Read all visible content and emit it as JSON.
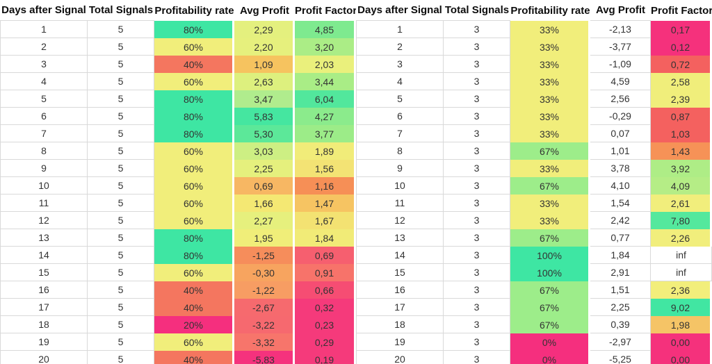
{
  "colors": {
    "border": "#d9d9d9",
    "cell_text": "#333333",
    "header_text": "#0d0d0d",
    "background": "#ffffff"
  },
  "chart_data": [
    {
      "type": "table",
      "columns": [
        "Days after Signal",
        "Total Signals",
        "Profitability rate",
        "Avg Profit",
        "Profit Factor"
      ],
      "rows": [
        [
          {
            "v": "1"
          },
          {
            "v": "5"
          },
          {
            "v": "80%",
            "bg": "#3ee6a3"
          },
          {
            "v": "2,29",
            "bg": "#e4f07e"
          },
          {
            "v": "4,85",
            "bg": "#7eea8f"
          }
        ],
        [
          {
            "v": "2"
          },
          {
            "v": "5"
          },
          {
            "v": "60%",
            "bg": "#f1ee7b"
          },
          {
            "v": "2,20",
            "bg": "#e6f07d"
          },
          {
            "v": "3,20",
            "bg": "#abed86"
          }
        ],
        [
          {
            "v": "3"
          },
          {
            "v": "5"
          },
          {
            "v": "40%",
            "bg": "#f4765f"
          },
          {
            "v": "1,09",
            "bg": "#f6c35f"
          },
          {
            "v": "2,03",
            "bg": "#eaf07c"
          }
        ],
        [
          {
            "v": "4"
          },
          {
            "v": "5"
          },
          {
            "v": "60%",
            "bg": "#f1ee7b"
          },
          {
            "v": "2,63",
            "bg": "#ddf07e"
          },
          {
            "v": "3,44",
            "bg": "#a9ed86"
          }
        ],
        [
          {
            "v": "5"
          },
          {
            "v": "5"
          },
          {
            "v": "80%",
            "bg": "#3ee6a3"
          },
          {
            "v": "3,47",
            "bg": "#b0ec8d"
          },
          {
            "v": "6,04",
            "bg": "#52e79c"
          }
        ],
        [
          {
            "v": "6"
          },
          {
            "v": "5"
          },
          {
            "v": "80%",
            "bg": "#3ee6a3"
          },
          {
            "v": "5,83",
            "bg": "#45e6a0"
          },
          {
            "v": "4,27",
            "bg": "#8beb8c"
          }
        ],
        [
          {
            "v": "7"
          },
          {
            "v": "5"
          },
          {
            "v": "80%",
            "bg": "#3ee6a3"
          },
          {
            "v": "5,30",
            "bg": "#5ce899"
          },
          {
            "v": "3,77",
            "bg": "#9cec88"
          }
        ],
        [
          {
            "v": "8"
          },
          {
            "v": "5"
          },
          {
            "v": "60%",
            "bg": "#f1ee7b"
          },
          {
            "v": "3,03",
            "bg": "#cdef83"
          },
          {
            "v": "1,89",
            "bg": "#f1ec79"
          }
        ],
        [
          {
            "v": "9"
          },
          {
            "v": "5"
          },
          {
            "v": "60%",
            "bg": "#f1ee7b"
          },
          {
            "v": "2,25",
            "bg": "#e5f07d"
          },
          {
            "v": "1,56",
            "bg": "#f3e374"
          }
        ],
        [
          {
            "v": "10"
          },
          {
            "v": "5"
          },
          {
            "v": "60%",
            "bg": "#f1ee7b"
          },
          {
            "v": "0,69",
            "bg": "#f7b763"
          },
          {
            "v": "1,16",
            "bg": "#f68f56"
          }
        ],
        [
          {
            "v": "11"
          },
          {
            "v": "5"
          },
          {
            "v": "60%",
            "bg": "#f1ee7b"
          },
          {
            "v": "1,66",
            "bg": "#f4e873"
          },
          {
            "v": "1,47",
            "bg": "#f6c462"
          }
        ],
        [
          {
            "v": "12"
          },
          {
            "v": "5"
          },
          {
            "v": "60%",
            "bg": "#f1ee7b"
          },
          {
            "v": "2,27",
            "bg": "#e6f07d"
          },
          {
            "v": "1,67",
            "bg": "#f3e272"
          }
        ],
        [
          {
            "v": "13"
          },
          {
            "v": "5"
          },
          {
            "v": "80%",
            "bg": "#3ee6a3"
          },
          {
            "v": "1,95",
            "bg": "#f0ee79"
          },
          {
            "v": "1,84",
            "bg": "#f1eb77"
          }
        ],
        [
          {
            "v": "14"
          },
          {
            "v": "5"
          },
          {
            "v": "80%",
            "bg": "#3ee6a3"
          },
          {
            "v": "-1,25",
            "bg": "#f68d5b"
          },
          {
            "v": "0,69",
            "bg": "#f65f6f"
          }
        ],
        [
          {
            "v": "15"
          },
          {
            "v": "5"
          },
          {
            "v": "60%",
            "bg": "#f1ee7b"
          },
          {
            "v": "-0,30",
            "bg": "#f7a45f"
          },
          {
            "v": "0,91",
            "bg": "#f7736a"
          }
        ],
        [
          {
            "v": "16"
          },
          {
            "v": "5"
          },
          {
            "v": "40%",
            "bg": "#f4765f"
          },
          {
            "v": "-1,22",
            "bg": "#f79d63"
          },
          {
            "v": "0,66",
            "bg": "#f64d73"
          }
        ],
        [
          {
            "v": "17"
          },
          {
            "v": "5"
          },
          {
            "v": "40%",
            "bg": "#f4765f"
          },
          {
            "v": "-2,67",
            "bg": "#f66a6e"
          },
          {
            "v": "0,32",
            "bg": "#f53a7b"
          }
        ],
        [
          {
            "v": "18"
          },
          {
            "v": "5"
          },
          {
            "v": "20%",
            "bg": "#f52f7e"
          },
          {
            "v": "-3,22",
            "bg": "#f6696f"
          },
          {
            "v": "0,23",
            "bg": "#f53a7b"
          }
        ],
        [
          {
            "v": "19"
          },
          {
            "v": "5"
          },
          {
            "v": "60%",
            "bg": "#f1ee7b"
          },
          {
            "v": "-3,32",
            "bg": "#f7756b"
          },
          {
            "v": "0,29",
            "bg": "#f53a7b"
          }
        ],
        [
          {
            "v": "20"
          },
          {
            "v": "5"
          },
          {
            "v": "40%",
            "bg": "#f4765f"
          },
          {
            "v": "-5,83",
            "bg": "#f5327d"
          },
          {
            "v": "0,19",
            "bg": "#f53a7b"
          }
        ]
      ]
    },
    {
      "type": "table",
      "columns": [
        "Days after Signal",
        "Total Signals",
        "Profitability rate",
        "Avg Profit",
        "Profit Factor"
      ],
      "rows": [
        [
          {
            "v": "1"
          },
          {
            "v": "3"
          },
          {
            "v": "33%",
            "bg": "#f1ee7b"
          },
          {
            "v": "-2,13"
          },
          {
            "v": "0,17",
            "bg": "#f5317c"
          }
        ],
        [
          {
            "v": "2"
          },
          {
            "v": "3"
          },
          {
            "v": "33%",
            "bg": "#f1ee7b"
          },
          {
            "v": "-3,77"
          },
          {
            "v": "0,12",
            "bg": "#f5317c"
          }
        ],
        [
          {
            "v": "3"
          },
          {
            "v": "3"
          },
          {
            "v": "33%",
            "bg": "#f1ee7b"
          },
          {
            "v": "-1,09"
          },
          {
            "v": "0,72",
            "bg": "#f4615f"
          }
        ],
        [
          {
            "v": "4"
          },
          {
            "v": "3"
          },
          {
            "v": "33%",
            "bg": "#f1ee7b"
          },
          {
            "v": "4,59"
          },
          {
            "v": "2,58",
            "bg": "#f0ee7b"
          }
        ],
        [
          {
            "v": "5"
          },
          {
            "v": "3"
          },
          {
            "v": "33%",
            "bg": "#f1ee7b"
          },
          {
            "v": "2,56"
          },
          {
            "v": "2,39",
            "bg": "#f0ee7b"
          }
        ],
        [
          {
            "v": "6"
          },
          {
            "v": "3"
          },
          {
            "v": "33%",
            "bg": "#f1ee7b"
          },
          {
            "v": "-0,29"
          },
          {
            "v": "0,87",
            "bg": "#f4615f"
          }
        ],
        [
          {
            "v": "7"
          },
          {
            "v": "3"
          },
          {
            "v": "33%",
            "bg": "#f1ee7b"
          },
          {
            "v": "0,07"
          },
          {
            "v": "1,03",
            "bg": "#f4615f"
          }
        ],
        [
          {
            "v": "8"
          },
          {
            "v": "3"
          },
          {
            "v": "67%",
            "bg": "#9ded8a"
          },
          {
            "v": "1,01"
          },
          {
            "v": "1,43",
            "bg": "#f69257"
          }
        ],
        [
          {
            "v": "9"
          },
          {
            "v": "3"
          },
          {
            "v": "33%",
            "bg": "#f1ee7b"
          },
          {
            "v": "3,78"
          },
          {
            "v": "3,92",
            "bg": "#aeed86"
          }
        ],
        [
          {
            "v": "10"
          },
          {
            "v": "3"
          },
          {
            "v": "67%",
            "bg": "#9ded8a"
          },
          {
            "v": "4,10"
          },
          {
            "v": "4,09",
            "bg": "#b5ed86"
          }
        ],
        [
          {
            "v": "11"
          },
          {
            "v": "3"
          },
          {
            "v": "33%",
            "bg": "#f1ee7b"
          },
          {
            "v": "1,54"
          },
          {
            "v": "2,61",
            "bg": "#f1ee7c"
          }
        ],
        [
          {
            "v": "12"
          },
          {
            "v": "3"
          },
          {
            "v": "33%",
            "bg": "#f1ee7b"
          },
          {
            "v": "2,42"
          },
          {
            "v": "7,80",
            "bg": "#54e89d"
          }
        ],
        [
          {
            "v": "13"
          },
          {
            "v": "3"
          },
          {
            "v": "67%",
            "bg": "#9ded8a"
          },
          {
            "v": "0,77"
          },
          {
            "v": "2,26",
            "bg": "#f1ee7c"
          }
        ],
        [
          {
            "v": "14"
          },
          {
            "v": "3"
          },
          {
            "v": "100%",
            "bg": "#3ee6a3"
          },
          {
            "v": "1,84"
          },
          {
            "v": "inf"
          }
        ],
        [
          {
            "v": "15"
          },
          {
            "v": "3"
          },
          {
            "v": "100%",
            "bg": "#3ee6a3"
          },
          {
            "v": "2,91"
          },
          {
            "v": "inf"
          }
        ],
        [
          {
            "v": "16"
          },
          {
            "v": "3"
          },
          {
            "v": "67%",
            "bg": "#9ded8a"
          },
          {
            "v": "1,51"
          },
          {
            "v": "2,36",
            "bg": "#f2ee7b"
          }
        ],
        [
          {
            "v": "17"
          },
          {
            "v": "3"
          },
          {
            "v": "67%",
            "bg": "#9ded8a"
          },
          {
            "v": "2,25"
          },
          {
            "v": "9,02",
            "bg": "#41e6a2"
          }
        ],
        [
          {
            "v": "18"
          },
          {
            "v": "3"
          },
          {
            "v": "67%",
            "bg": "#9ded8a"
          },
          {
            "v": "0,39"
          },
          {
            "v": "1,98",
            "bg": "#f5c466"
          }
        ],
        [
          {
            "v": "19"
          },
          {
            "v": "3"
          },
          {
            "v": "0%",
            "bg": "#f52f7e"
          },
          {
            "v": "-2,97"
          },
          {
            "v": "0,00",
            "bg": "#f5317c"
          }
        ],
        [
          {
            "v": "20"
          },
          {
            "v": "3"
          },
          {
            "v": "0%",
            "bg": "#f52f7e"
          },
          {
            "v": "-5,25"
          },
          {
            "v": "0,00",
            "bg": "#f5317c"
          }
        ]
      ]
    }
  ]
}
